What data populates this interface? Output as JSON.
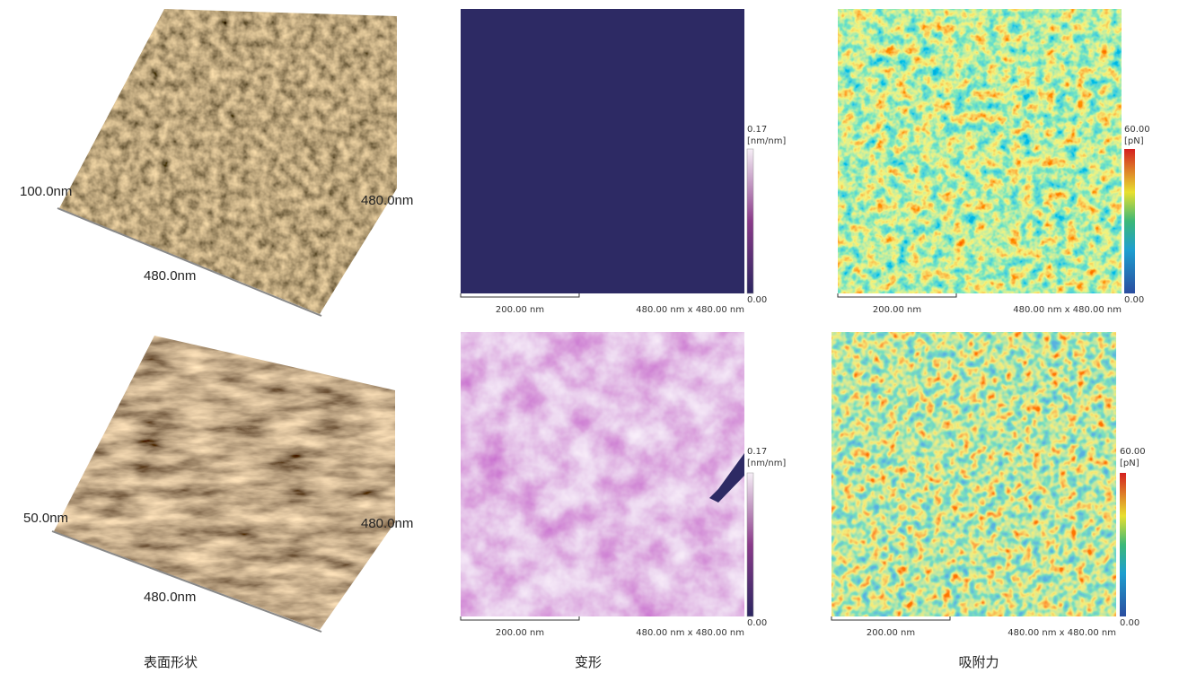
{
  "rows": [
    {
      "topography": {
        "height_label": "100.0nm",
        "y_label": "480.0nm",
        "x_label": "480.0nm"
      },
      "deformation": {
        "colorbar_max": "0.17",
        "colorbar_unit": "[nm/nm]",
        "colorbar_min": "0.00",
        "scale_bar": "200.00 nm",
        "size": "480.00 nm x 480.00 nm"
      },
      "adhesion": {
        "colorbar_max": "60.00",
        "colorbar_unit": "[pN]",
        "colorbar_min": "0.00",
        "scale_bar": "200.00 nm",
        "size": "480.00 nm x 480.00 nm"
      }
    },
    {
      "topography": {
        "height_label": "50.0nm",
        "y_label": "480.0nm",
        "x_label": "480.0nm"
      },
      "deformation": {
        "colorbar_max": "0.17",
        "colorbar_unit": "[nm/nm]",
        "colorbar_min": "0.00",
        "scale_bar": "200.00 nm",
        "size": "480.00 nm x 480.00 nm"
      },
      "adhesion": {
        "colorbar_max": "60.00",
        "colorbar_unit": "[pN]",
        "colorbar_min": "0.00",
        "scale_bar": "200.00 nm",
        "size": "480.00 nm x 480.00 nm"
      }
    }
  ],
  "captions": [
    "表面形状",
    "变形",
    "吸附力"
  ]
}
